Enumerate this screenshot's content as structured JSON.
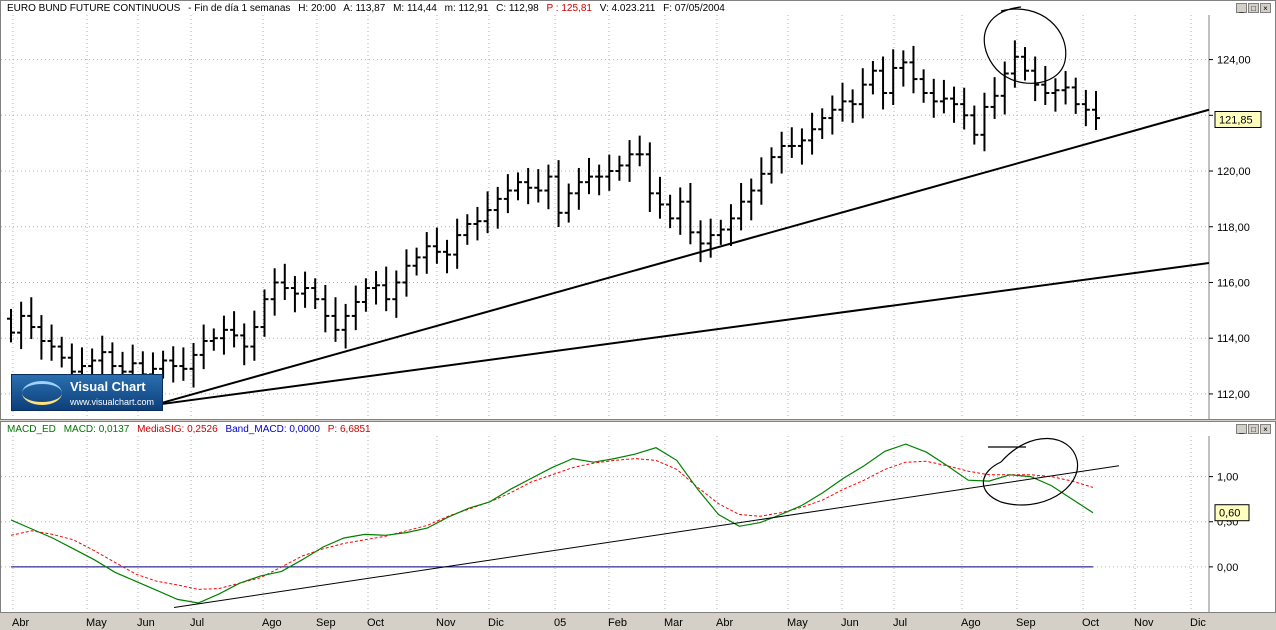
{
  "price_header": {
    "symbol": "EURO BUND FUTURE CONTINUOUS",
    "period": "- Fin de día 1 semanas",
    "hour": "H: 20:00",
    "open": "A: 113,87",
    "high": "M: 114,44",
    "low": "m: 112,91",
    "close": "C: 112,98",
    "p": "P : 125,81",
    "volume": "V: 4.023.211",
    "date": "F: 07/05/2004"
  },
  "macd_header": {
    "name": "MACD_ED",
    "macd": "MACD: 0,0137",
    "signal": "MediaSIG: 0,2526",
    "band": "Band_MACD: 0,0000",
    "p": "P: 6,6851"
  },
  "window_buttons": [
    "_",
    "□",
    "×"
  ],
  "logo": {
    "title": "Visual Chart",
    "url": "www.visualchart.com"
  },
  "colors": {
    "macd": "#008000",
    "signal": "#ff0000",
    "band": "#000080",
    "bars": "#000000",
    "lines": "#000000"
  },
  "chart_data": [
    {
      "type": "ohlc",
      "title": "EURO BUND FUTURE CONTINUOUS",
      "y_ticks": [
        112,
        114,
        116,
        118,
        120,
        122,
        124
      ],
      "y_tick_labels": [
        "112,00",
        "114,00",
        "116,00",
        "118,00",
        "120,00",
        "122,00",
        "124,00"
      ],
      "ylim": [
        111.1,
        125.6
      ],
      "last_value": 121.85,
      "last_value_label": "121,85",
      "x_labels": [
        "Abr",
        "May",
        "Jun",
        "Jul",
        "Ago",
        "Sep",
        "Oct",
        "Nov",
        "Dic",
        "05",
        "Feb",
        "Mar",
        "Abr",
        "May",
        "Jun",
        "Jul",
        "Ago",
        "Sep",
        "Oct",
        "Nov",
        "Dic"
      ],
      "closes": [
        114.2,
        114.8,
        114.4,
        113.9,
        113.7,
        113.3,
        112.8,
        113.0,
        113.2,
        113.5,
        113.0,
        112.8,
        113.1,
        112.7,
        112.9,
        113.2,
        113.0,
        112.9,
        113.4,
        113.9,
        114.0,
        114.3,
        114.1,
        113.7,
        114.4,
        115.4,
        116.0,
        115.8,
        115.6,
        115.8,
        115.4,
        114.8,
        114.3,
        114.8,
        115.3,
        115.8,
        115.9,
        115.4,
        116.0,
        116.6,
        116.9,
        117.3,
        117.1,
        117.0,
        117.7,
        118.1,
        118.2,
        118.6,
        119.0,
        119.3,
        119.6,
        119.4,
        119.3,
        119.8,
        118.5,
        119.2,
        119.6,
        119.8,
        119.8,
        120.0,
        120.2,
        120.6,
        120.6,
        119.2,
        118.8,
        118.3,
        118.9,
        117.8,
        117.4,
        117.7,
        117.9,
        118.3,
        118.9,
        119.3,
        119.9,
        120.5,
        120.9,
        120.9,
        121.1,
        121.5,
        121.9,
        122.2,
        122.5,
        122.4,
        123.1,
        123.6,
        122.8,
        123.7,
        123.9,
        123.3,
        122.8,
        122.5,
        122.6,
        122.4,
        122.0,
        121.3,
        122.3,
        122.7,
        123.5,
        124.1,
        123.6,
        123.1,
        122.8,
        122.9,
        123.0,
        122.4,
        122.2,
        121.9
      ],
      "trendlines": [
        {
          "from": [
            "Jun",
            111.6
          ],
          "to": [
            "Dic",
            122.2
          ]
        },
        {
          "from": [
            "Jun",
            111.6
          ],
          "to": [
            "Dic",
            116.7
          ]
        }
      ],
      "annotation": "hand-drawn circle around Sep highs"
    },
    {
      "type": "line",
      "title": "MACD_ED",
      "y_ticks": [
        0,
        0.5,
        1.0
      ],
      "y_tick_labels": [
        "0,00",
        "0,50",
        "1,00"
      ],
      "ylim": [
        -0.5,
        1.45
      ],
      "last_value": 0.6,
      "last_value_label": "0,60",
      "series": [
        {
          "name": "MACD",
          "values": [
            0.52,
            0.42,
            0.32,
            0.2,
            0.08,
            -0.06,
            -0.16,
            -0.26,
            -0.36,
            -0.4,
            -0.3,
            -0.18,
            -0.1,
            -0.05,
            0.08,
            0.22,
            0.32,
            0.36,
            0.35,
            0.38,
            0.43,
            0.55,
            0.65,
            0.72,
            0.86,
            0.98,
            1.1,
            1.2,
            1.16,
            1.2,
            1.25,
            1.32,
            1.18,
            0.86,
            0.58,
            0.45,
            0.49,
            0.58,
            0.68,
            0.82,
            0.98,
            1.12,
            1.28,
            1.36,
            1.27,
            1.12,
            0.96,
            0.95,
            1.02,
            1.0,
            0.9,
            0.75,
            0.6
          ]
        },
        {
          "name": "MediaSIG",
          "values": [
            0.35,
            0.4,
            0.36,
            0.3,
            0.18,
            0.05,
            -0.08,
            -0.16,
            -0.2,
            -0.25,
            -0.24,
            -0.18,
            -0.12,
            0.0,
            0.12,
            0.2,
            0.26,
            0.3,
            0.34,
            0.4,
            0.46,
            0.56,
            0.64,
            0.72,
            0.82,
            0.94,
            1.02,
            1.1,
            1.15,
            1.18,
            1.2,
            1.18,
            1.08,
            0.88,
            0.7,
            0.58,
            0.56,
            0.6,
            0.66,
            0.74,
            0.86,
            0.96,
            1.08,
            1.16,
            1.17,
            1.12,
            1.06,
            1.02,
            1.02,
            1.02,
            1.0,
            0.95,
            0.88
          ]
        },
        {
          "name": "Band_MACD",
          "values": [
            0,
            0
          ]
        }
      ],
      "trendline": {
        "from": [
          "Jun",
          -0.45
        ],
        "to": [
          "Oct",
          1.12
        ]
      },
      "annotation": "hand-drawn circle around Sep-Oct crossover"
    }
  ]
}
